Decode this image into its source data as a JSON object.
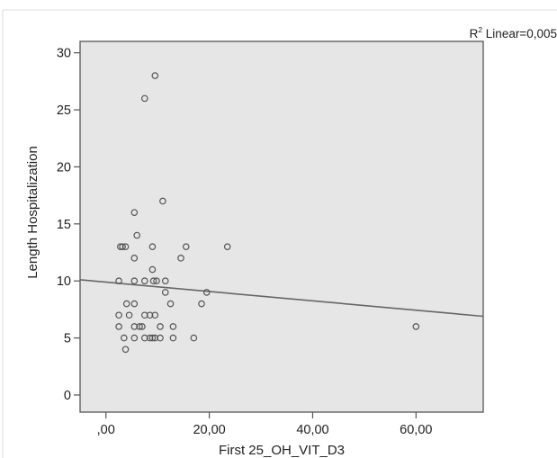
{
  "colors": {
    "plot_background": "#e6e6e6",
    "axis": "#555555",
    "marker_stroke": "#555555",
    "fit_line": "#666666"
  },
  "chart_data": {
    "type": "scatter",
    "xlabel": "First 25_OH_VIT_D3",
    "ylabel": "Length Hospitalization",
    "annotation": {
      "prefix": "R",
      "superscript": "2",
      "text": " Linear=0,005"
    },
    "xlim": [
      -5,
      73
    ],
    "ylim": [
      -1.5,
      31
    ],
    "x_ticks": [
      0,
      20,
      40,
      60
    ],
    "x_tick_labels": [
      ",00",
      "20,00",
      "40,00",
      "60,00"
    ],
    "y_ticks": [
      0,
      5,
      10,
      15,
      20,
      25,
      30
    ],
    "y_tick_labels": [
      "0",
      "5",
      "10",
      "15",
      "20",
      "25",
      "30"
    ],
    "grid": false,
    "marker": "open-circle",
    "points": [
      {
        "x": 9.5,
        "y": 28
      },
      {
        "x": 7.5,
        "y": 26
      },
      {
        "x": 11,
        "y": 17
      },
      {
        "x": 5.5,
        "y": 16
      },
      {
        "x": 6,
        "y": 14
      },
      {
        "x": 2.8,
        "y": 13
      },
      {
        "x": 3.2,
        "y": 13
      },
      {
        "x": 3.8,
        "y": 13
      },
      {
        "x": 9,
        "y": 13
      },
      {
        "x": 15.5,
        "y": 13
      },
      {
        "x": 23.5,
        "y": 13
      },
      {
        "x": 5.5,
        "y": 12
      },
      {
        "x": 14.5,
        "y": 12
      },
      {
        "x": 9,
        "y": 11
      },
      {
        "x": 2.5,
        "y": 10
      },
      {
        "x": 5.5,
        "y": 10
      },
      {
        "x": 7.5,
        "y": 10
      },
      {
        "x": 9.2,
        "y": 10
      },
      {
        "x": 9.8,
        "y": 10
      },
      {
        "x": 11.5,
        "y": 10
      },
      {
        "x": 11.5,
        "y": 9
      },
      {
        "x": 19.5,
        "y": 9
      },
      {
        "x": 4,
        "y": 8
      },
      {
        "x": 5.5,
        "y": 8
      },
      {
        "x": 12.5,
        "y": 8
      },
      {
        "x": 18.5,
        "y": 8
      },
      {
        "x": 2.5,
        "y": 7
      },
      {
        "x": 4.5,
        "y": 7
      },
      {
        "x": 7.5,
        "y": 7
      },
      {
        "x": 8.5,
        "y": 7
      },
      {
        "x": 9.5,
        "y": 7
      },
      {
        "x": 2.5,
        "y": 6
      },
      {
        "x": 5.5,
        "y": 6
      },
      {
        "x": 6.5,
        "y": 6
      },
      {
        "x": 7,
        "y": 6
      },
      {
        "x": 10.5,
        "y": 6
      },
      {
        "x": 13,
        "y": 6
      },
      {
        "x": 60,
        "y": 6
      },
      {
        "x": 3.5,
        "y": 5
      },
      {
        "x": 5.5,
        "y": 5
      },
      {
        "x": 7.5,
        "y": 5
      },
      {
        "x": 8.5,
        "y": 5
      },
      {
        "x": 9,
        "y": 5
      },
      {
        "x": 9.5,
        "y": 5
      },
      {
        "x": 10.5,
        "y": 5
      },
      {
        "x": 13,
        "y": 5
      },
      {
        "x": 17,
        "y": 5
      },
      {
        "x": 3.8,
        "y": 4
      }
    ],
    "fit_line": {
      "type": "linear",
      "x": [
        -5,
        73
      ],
      "y": [
        10.1,
        6.9
      ]
    }
  }
}
